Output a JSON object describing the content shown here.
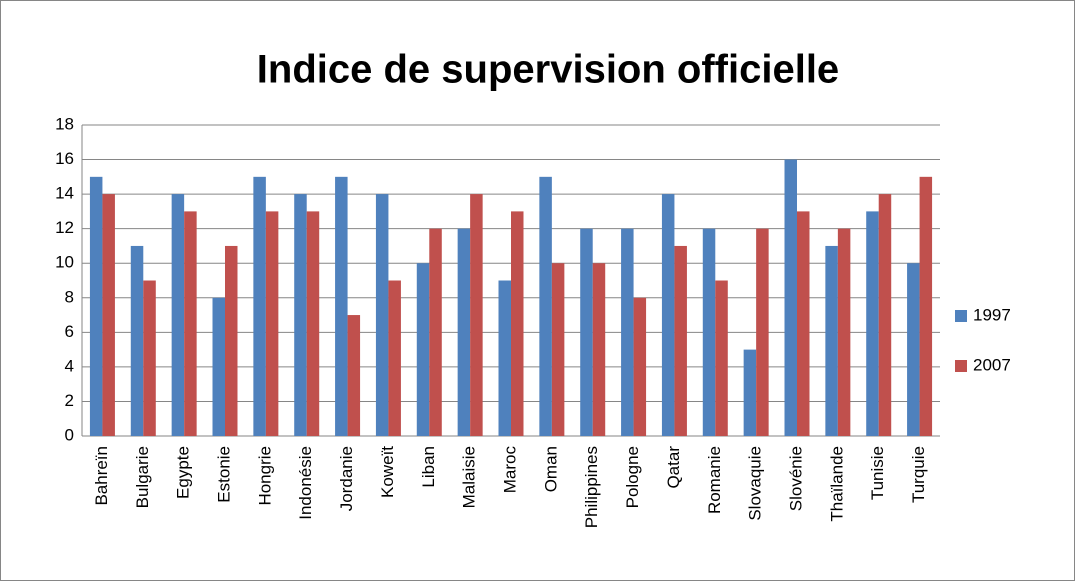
{
  "chart_data": {
    "type": "bar",
    "title": "Indice de supervision officielle",
    "categories": [
      "Bahreïn",
      "Bulgarie",
      "Egypte",
      "Estonie",
      "Hongrie",
      "Indonésie",
      "Jordanie",
      "Koweït",
      "Liban",
      "Malaisie",
      "Maroc",
      "Oman",
      "Philippines",
      "Pologne",
      "Qatar",
      "Romanie",
      "Slovaquie",
      "Slovénie",
      "Thaïlande",
      "Tunisie",
      "Turquie"
    ],
    "series": [
      {
        "name": "1997",
        "color": "#4f81bd",
        "values": [
          15,
          11,
          14,
          8,
          15,
          14,
          15,
          14,
          10,
          12,
          9,
          15,
          12,
          12,
          14,
          12,
          5,
          16,
          11,
          13,
          10
        ]
      },
      {
        "name": "2007",
        "color": "#c0504d",
        "values": [
          14,
          9,
          13,
          11,
          13,
          13,
          7,
          9,
          12,
          14,
          13,
          10,
          10,
          8,
          11,
          9,
          12,
          13,
          12,
          14,
          15
        ]
      }
    ],
    "ylim": [
      0,
      18
    ],
    "yticks": [
      0,
      2,
      4,
      6,
      8,
      10,
      12,
      14,
      16,
      18
    ],
    "grid": true,
    "legend": "right"
  }
}
